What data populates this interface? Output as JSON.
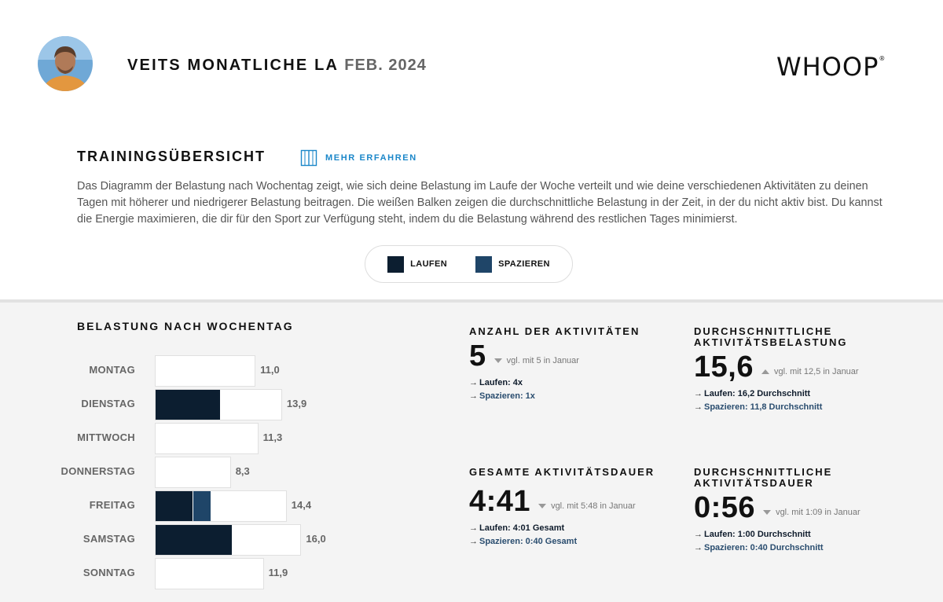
{
  "header": {
    "title": "VEITS MONATLICHE LA",
    "period": "FEB. 2024",
    "logo": "WHOOP",
    "logo_mark": "®"
  },
  "overview": {
    "title": "TRAININGSÜBERSICHT",
    "learn_more": "MEHR ERFAHREN",
    "description": "Das Diagramm der Belastung nach Wochentag zeigt, wie sich deine Belastung im Laufe der Woche verteilt und wie deine verschiedenen Aktivitäten zu deinen Tagen mit höherer und niedrigerer Belastung beitragen. Die weißen Balken zeigen die durchschnittliche Belastung in der Zeit, in der du nicht aktiv bist. Du kannst die Energie maximieren, die dir für den Sport zur Verfügung steht, indem du die Belastung während des restlichen Tages minimierst."
  },
  "legend": [
    {
      "label": "LAUFEN",
      "color": "#0c1e30"
    },
    {
      "label": "SPAZIEREN",
      "color": "#1f4568"
    }
  ],
  "chart_data": {
    "type": "bar",
    "title": "BELASTUNG NACH WOCHENTAG",
    "orientation": "horizontal",
    "categories": [
      "MONTAG",
      "DIENSTAG",
      "MITTWOCH",
      "DONNERSTAG",
      "FREITAG",
      "SAMSTAG",
      "SONNTAG"
    ],
    "totals": [
      11.0,
      13.9,
      11.3,
      8.3,
      14.4,
      16.0,
      11.9
    ],
    "total_labels": [
      "11,0",
      "13,9",
      "11,3",
      "8,3",
      "14,4",
      "16,0",
      "11,9"
    ],
    "series": [
      {
        "name": "LAUFEN",
        "values": [
          0,
          7.0,
          0,
          0,
          4.0,
          8.3,
          0
        ]
      },
      {
        "name": "SPAZIEREN",
        "values": [
          0,
          0,
          0,
          0,
          2.0,
          0,
          0
        ]
      }
    ],
    "xlim": [
      0,
      17
    ]
  },
  "stats": {
    "count": {
      "title": "ANZAHL DER AKTIVITÄTEN",
      "value": "5",
      "trend": "down",
      "compare": "vgl. mit 5 in Januar",
      "line1": "Laufen: 4x",
      "line2": "Spazieren: 1x"
    },
    "avg_strain": {
      "title": "DURCHSCHNITTLICHE AKTIVITÄTSBELASTUNG",
      "value": "15,6",
      "trend": "up",
      "compare": "vgl. mit 12,5 in Januar",
      "line1": "Laufen: 16,2 Durchschnitt",
      "line2": "Spazieren: 11,8 Durchschnitt"
    },
    "total_duration": {
      "title": "GESAMTE AKTIVITÄTSDAUER",
      "value": "4:41",
      "trend": "down",
      "compare": "vgl. mit 5:48 in Januar",
      "line1": "Laufen: 4:01 Gesamt",
      "line2": "Spazieren: 0:40 Gesamt"
    },
    "avg_duration": {
      "title": "DURCHSCHNITTLICHE AKTIVITÄTSDAUER",
      "value": "0:56",
      "trend": "down",
      "compare": "vgl. mit 1:09 in Januar",
      "line1": "Laufen: 1:00 Durchschnitt",
      "line2": "Spazieren: 0:40 Durchschnitt"
    }
  }
}
